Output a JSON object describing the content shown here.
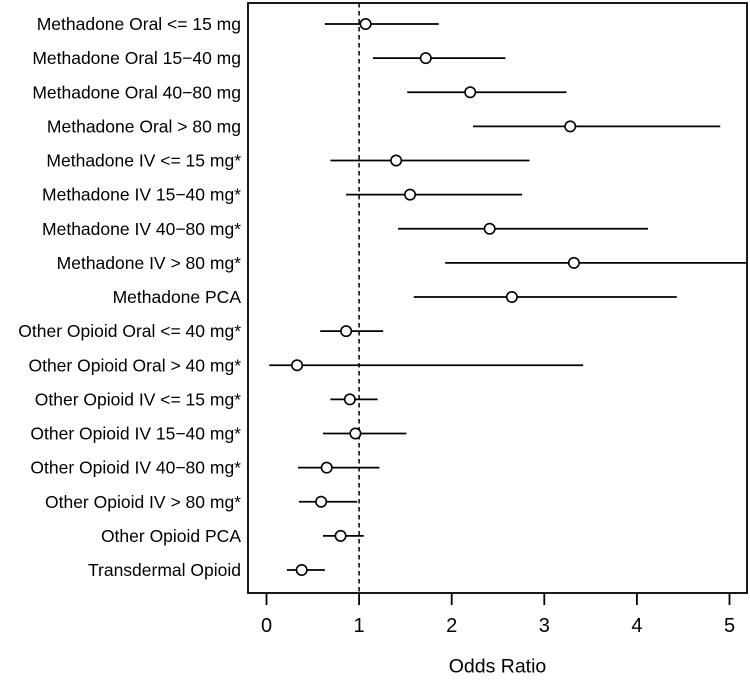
{
  "chart_data": {
    "type": "forest",
    "title": "",
    "xlabel": "Odds Ratio",
    "ylabel": "",
    "xlim": [
      -0.2,
      5.2
    ],
    "xticks": [
      0,
      1,
      2,
      3,
      4,
      5
    ],
    "xtick_labels": [
      "0",
      "1",
      "2",
      "3",
      "4",
      "5"
    ],
    "reference_line": 1,
    "reference_line_style": "dashed",
    "grid": false,
    "legend": false,
    "marker": "open-circle",
    "colors": {
      "line": "#000000",
      "marker_fill": "#ffffff",
      "background": "#ffffff"
    },
    "rows": [
      {
        "label": "Methadone Oral <= 15 mg",
        "or": 1.07,
        "ci_low": 0.63,
        "ci_high": 1.86,
        "clipped_high": false
      },
      {
        "label": "Methadone Oral 15−40 mg",
        "or": 1.72,
        "ci_low": 1.15,
        "ci_high": 2.58,
        "clipped_high": false
      },
      {
        "label": "Methadone Oral 40−80 mg",
        "or": 2.2,
        "ci_low": 1.52,
        "ci_high": 3.24,
        "clipped_high": false
      },
      {
        "label": "Methadone Oral > 80 mg",
        "or": 3.28,
        "ci_low": 2.23,
        "ci_high": 4.9,
        "clipped_high": false
      },
      {
        "label": "Methadone IV <= 15 mg*",
        "or": 1.4,
        "ci_low": 0.69,
        "ci_high": 2.84,
        "clipped_high": false
      },
      {
        "label": "Methadone IV 15−40 mg*",
        "or": 1.55,
        "ci_low": 0.86,
        "ci_high": 2.76,
        "clipped_high": false
      },
      {
        "label": "Methadone IV 40−80 mg*",
        "or": 2.41,
        "ci_low": 1.42,
        "ci_high": 4.12,
        "clipped_high": false
      },
      {
        "label": "Methadone IV > 80 mg*",
        "or": 3.32,
        "ci_low": 1.93,
        "ci_high": 5.2,
        "clipped_high": true
      },
      {
        "label": "Methadone PCA",
        "or": 2.65,
        "ci_low": 1.59,
        "ci_high": 4.43,
        "clipped_high": false
      },
      {
        "label": "Other Opioid Oral <= 40 mg*",
        "or": 0.86,
        "ci_low": 0.58,
        "ci_high": 1.26,
        "clipped_high": false
      },
      {
        "label": "Other Opioid Oral > 40 mg*",
        "or": 0.33,
        "ci_low": 0.03,
        "ci_high": 3.42,
        "clipped_high": false
      },
      {
        "label": "Other Opioid IV <= 15 mg*",
        "or": 0.9,
        "ci_low": 0.69,
        "ci_high": 1.2,
        "clipped_high": false
      },
      {
        "label": "Other Opioid IV 15−40 mg*",
        "or": 0.96,
        "ci_low": 0.61,
        "ci_high": 1.51,
        "clipped_high": false
      },
      {
        "label": "Other Opioid IV 40−80 mg*",
        "or": 0.65,
        "ci_low": 0.34,
        "ci_high": 1.22,
        "clipped_high": false
      },
      {
        "label": "Other Opioid IV > 80 mg*",
        "or": 0.59,
        "ci_low": 0.35,
        "ci_high": 0.98,
        "clipped_high": false
      },
      {
        "label": "Other Opioid PCA",
        "or": 0.8,
        "ci_low": 0.61,
        "ci_high": 1.05,
        "clipped_high": false
      },
      {
        "label": "Transdermal Opioid",
        "or": 0.38,
        "ci_low": 0.22,
        "ci_high": 0.63,
        "clipped_high": false
      }
    ]
  }
}
